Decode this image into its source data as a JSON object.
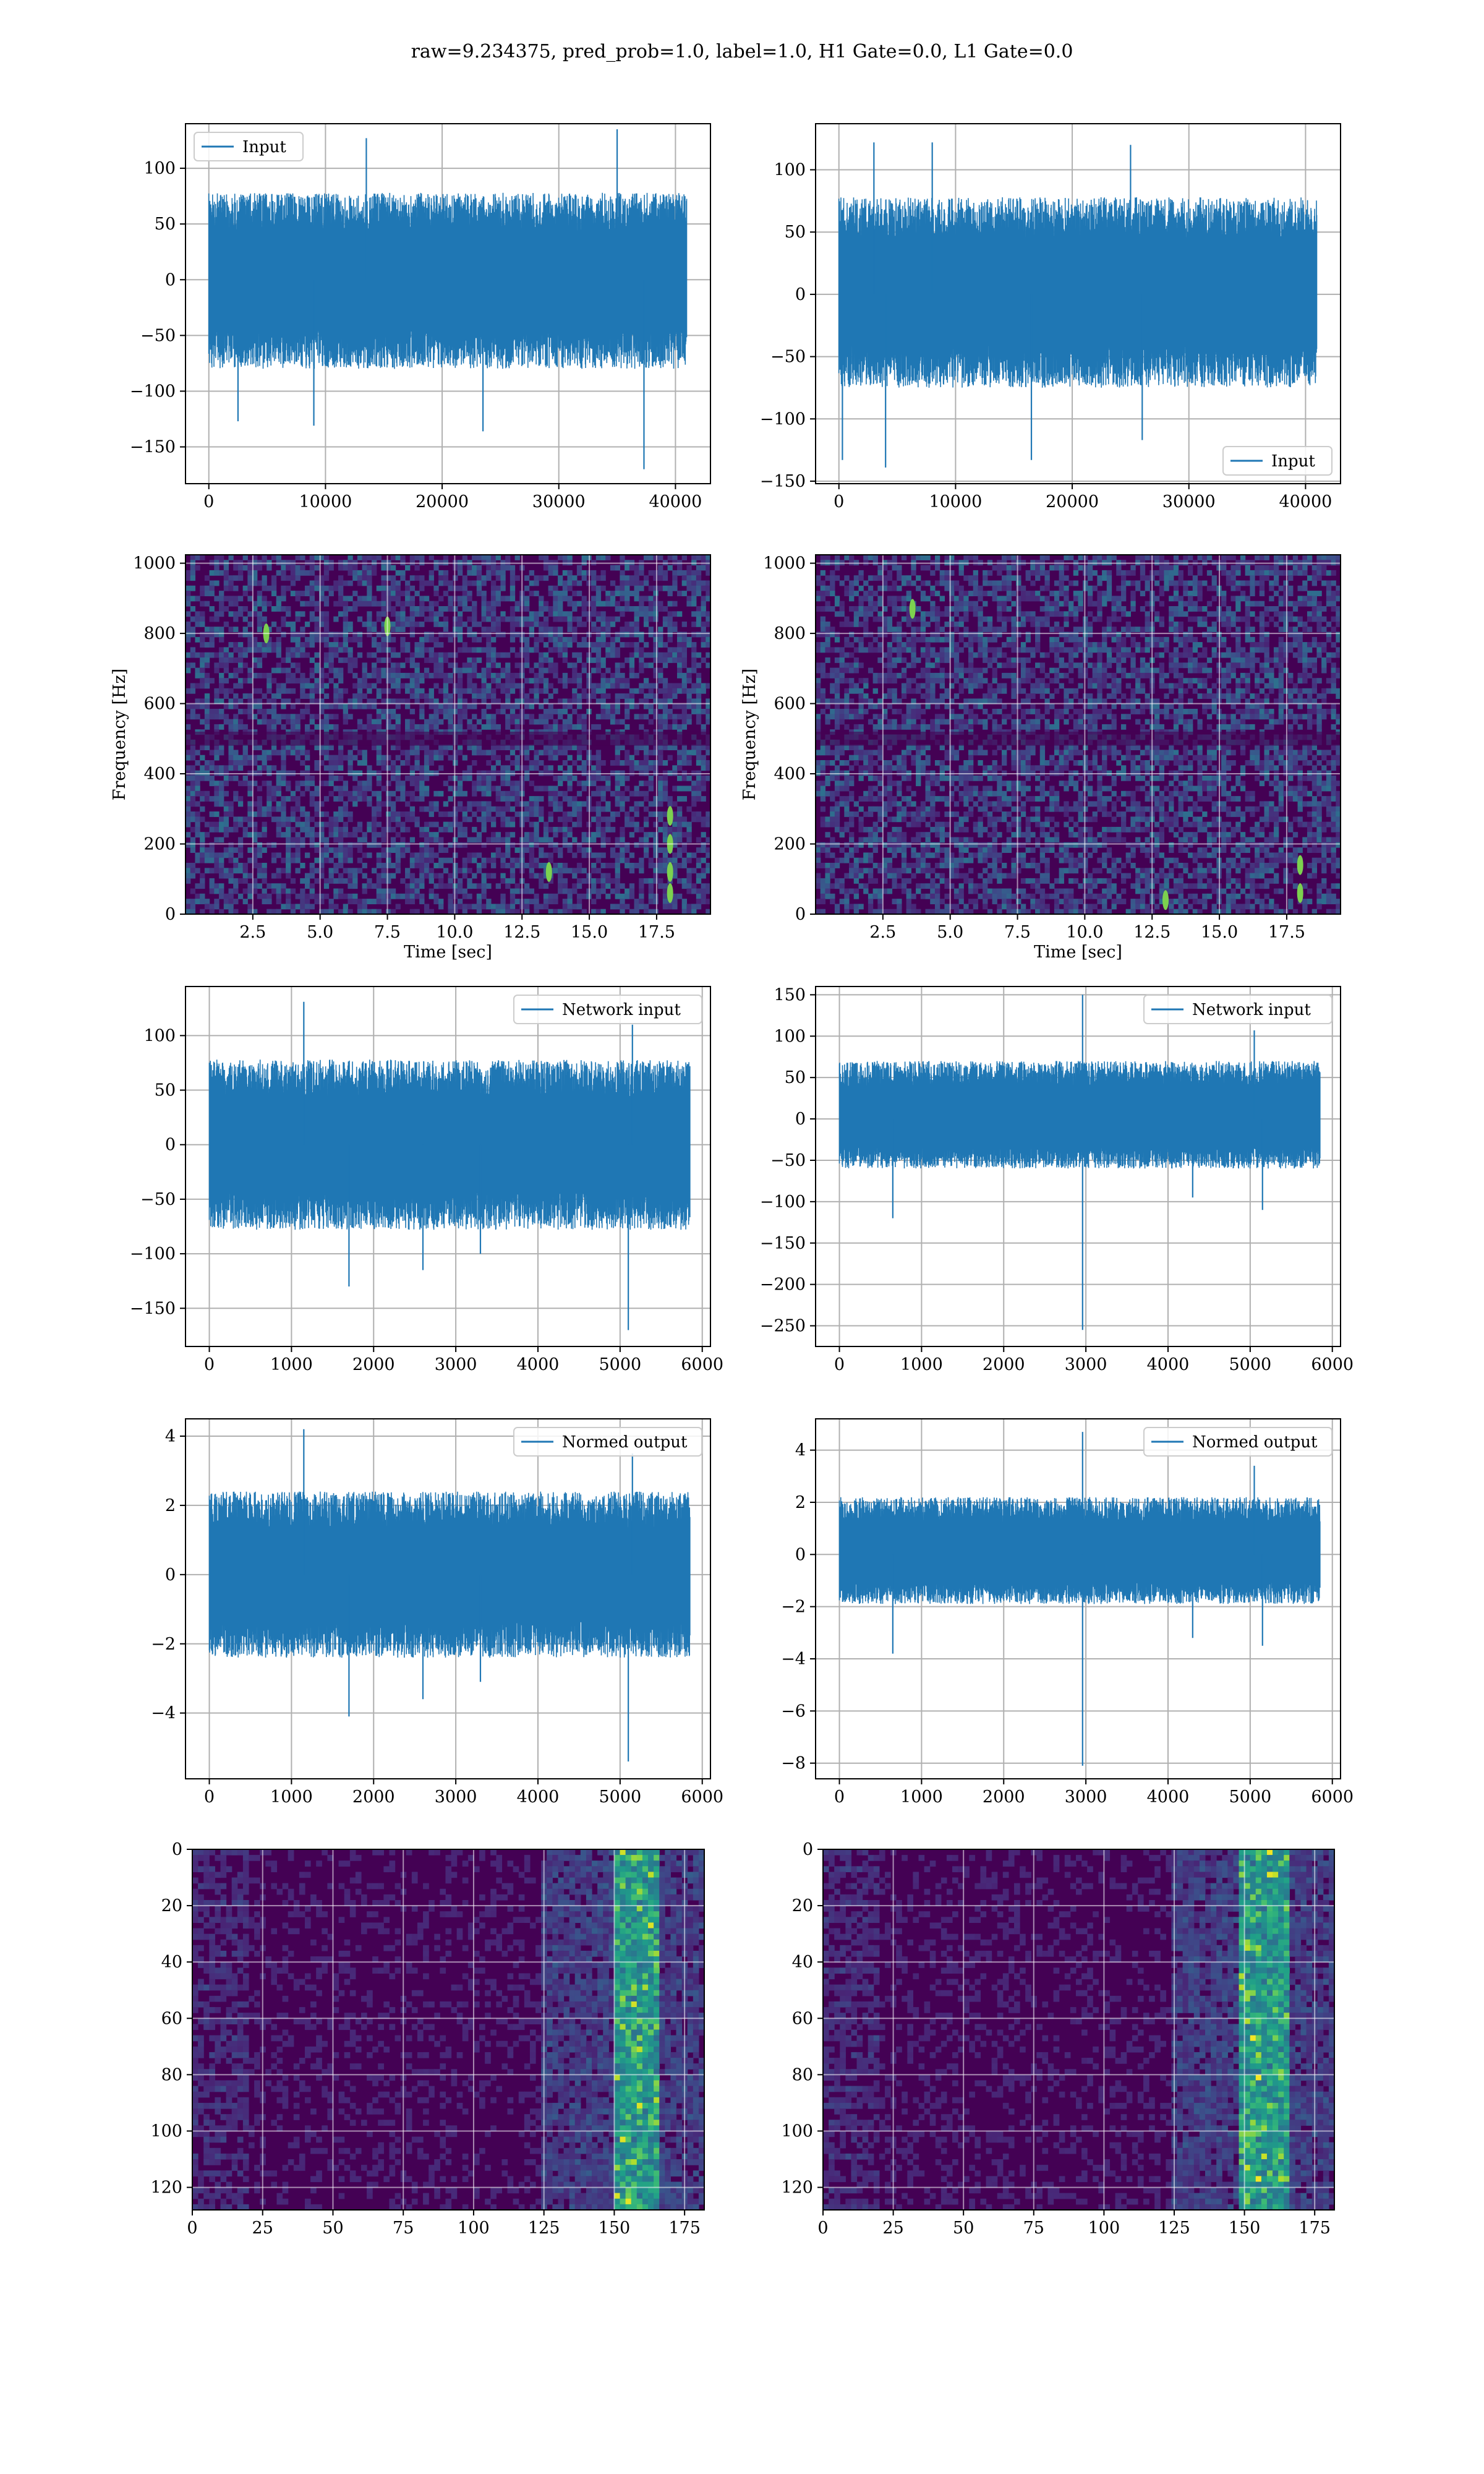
{
  "suptitle": "raw=9.234375, pred_prob=1.0, label=1.0, H1 Gate=0.0, L1 Gate=0.0",
  "colors": {
    "line": "#1f77b4",
    "grid": "#b0b0b0",
    "viridis_dark": "#440154",
    "viridis_mid": "#21918c",
    "viridis_bright": "#fde725"
  },
  "chart_data": [
    {
      "id": "input-h1",
      "type": "line",
      "row": 0,
      "col": 0,
      "legend": "Input",
      "legend_loc": "upper-left",
      "xlim": [
        -2000,
        43000
      ],
      "ylim": [
        -183,
        140
      ],
      "xticks": [
        0,
        10000,
        20000,
        30000,
        40000
      ],
      "xticklabels": [
        "0",
        "10000",
        "20000",
        "30000",
        "40000"
      ],
      "yticks": [
        -150,
        -100,
        -50,
        0,
        50,
        100
      ],
      "yticklabels": [
        "−150",
        "−100",
        "−50",
        "0",
        "50",
        "100"
      ],
      "x_max": 40960,
      "envelope": [
        -80,
        78
      ],
      "spikes": [
        [
          2500,
          -127
        ],
        [
          9000,
          -131
        ],
        [
          13500,
          127
        ],
        [
          23500,
          -136
        ],
        [
          35000,
          135
        ],
        [
          37300,
          -170
        ]
      ],
      "grid": true,
      "xlabel": "",
      "ylabel": ""
    },
    {
      "id": "input-l1",
      "type": "line",
      "row": 0,
      "col": 1,
      "legend": "Input",
      "legend_loc": "lower-right",
      "xlim": [
        -2000,
        43000
      ],
      "ylim": [
        -152,
        137
      ],
      "xticks": [
        0,
        10000,
        20000,
        30000,
        40000
      ],
      "xticklabels": [
        "0",
        "10000",
        "20000",
        "30000",
        "40000"
      ],
      "yticks": [
        -150,
        -100,
        -50,
        0,
        50,
        100
      ],
      "yticklabels": [
        "−150",
        "−100",
        "−50",
        "0",
        "50",
        "100"
      ],
      "x_max": 40960,
      "envelope": [
        -75,
        78
      ],
      "spikes": [
        [
          300,
          -133
        ],
        [
          3000,
          122
        ],
        [
          4000,
          -139
        ],
        [
          8000,
          122
        ],
        [
          16500,
          -133
        ],
        [
          25000,
          120
        ],
        [
          26000,
          -117
        ]
      ],
      "grid": true,
      "xlabel": "",
      "ylabel": ""
    },
    {
      "id": "spectrogram-h1",
      "type": "heatmap",
      "row": 1,
      "col": 0,
      "xlim": [
        0,
        19.5
      ],
      "ylim": [
        0,
        1024
      ],
      "xticks": [
        2.5,
        5.0,
        7.5,
        10.0,
        12.5,
        15.0,
        17.5
      ],
      "xticklabels": [
        "2.5",
        "5.0",
        "7.5",
        "10.0",
        "12.5",
        "15.0",
        "17.5"
      ],
      "yticks": [
        0,
        200,
        400,
        600,
        800,
        1000
      ],
      "yticklabels": [
        "0",
        "200",
        "400",
        "600",
        "800",
        "1000"
      ],
      "xlabel": "Time [sec]",
      "ylabel": "Frequency [Hz]",
      "bright_spots": [
        [
          18.0,
          60
        ],
        [
          18.0,
          120
        ],
        [
          18.0,
          200
        ],
        [
          18.0,
          280
        ],
        [
          13.5,
          120
        ],
        [
          3.0,
          800
        ],
        [
          7.5,
          820
        ]
      ],
      "grid": true
    },
    {
      "id": "spectrogram-l1",
      "type": "heatmap",
      "row": 1,
      "col": 1,
      "xlim": [
        0,
        19.5
      ],
      "ylim": [
        0,
        1024
      ],
      "xticks": [
        2.5,
        5.0,
        7.5,
        10.0,
        12.5,
        15.0,
        17.5
      ],
      "xticklabels": [
        "2.5",
        "5.0",
        "7.5",
        "10.0",
        "12.5",
        "15.0",
        "17.5"
      ],
      "yticks": [
        0,
        200,
        400,
        600,
        800,
        1000
      ],
      "yticklabels": [
        "0",
        "200",
        "400",
        "600",
        "800",
        "1000"
      ],
      "xlabel": "Time [sec]",
      "ylabel": "Frequency [Hz]",
      "bright_spots": [
        [
          3.6,
          870
        ],
        [
          13.0,
          40
        ],
        [
          18.0,
          60
        ],
        [
          18.0,
          140
        ]
      ],
      "grid": true
    },
    {
      "id": "network-input-h1",
      "type": "line",
      "row": 2,
      "col": 0,
      "legend": "Network input",
      "legend_loc": "upper-right",
      "xlim": [
        -290,
        6100
      ],
      "ylim": [
        -185,
        145
      ],
      "xticks": [
        0,
        1000,
        2000,
        3000,
        4000,
        5000,
        6000
      ],
      "xticklabels": [
        "0",
        "1000",
        "2000",
        "3000",
        "4000",
        "5000",
        "6000"
      ],
      "yticks": [
        -150,
        -100,
        -50,
        0,
        50,
        100
      ],
      "yticklabels": [
        "−150",
        "−100",
        "−50",
        "0",
        "50",
        "100"
      ],
      "x_max": 5850,
      "envelope": [
        -78,
        78
      ],
      "spikes": [
        [
          1150,
          131
        ],
        [
          1700,
          -130
        ],
        [
          2600,
          -115
        ],
        [
          5100,
          -170
        ],
        [
          5150,
          110
        ],
        [
          3300,
          -100
        ]
      ],
      "grid": true,
      "xlabel": "",
      "ylabel": ""
    },
    {
      "id": "network-input-l1",
      "type": "line",
      "row": 2,
      "col": 1,
      "legend": "Network input",
      "legend_loc": "upper-right",
      "xlim": [
        -290,
        6100
      ],
      "ylim": [
        -275,
        160
      ],
      "xticks": [
        0,
        1000,
        2000,
        3000,
        4000,
        5000,
        6000
      ],
      "xticklabels": [
        "0",
        "1000",
        "2000",
        "3000",
        "4000",
        "5000",
        "6000"
      ],
      "yticks": [
        -250,
        -200,
        -150,
        -100,
        -50,
        0,
        50,
        100,
        150
      ],
      "yticklabels": [
        "−250",
        "−200",
        "−150",
        "−100",
        "−50",
        "0",
        "50",
        "100",
        "150"
      ],
      "x_max": 5850,
      "envelope": [
        -60,
        70
      ],
      "spikes": [
        [
          2960,
          150
        ],
        [
          2960,
          -255
        ],
        [
          650,
          -120
        ],
        [
          5050,
          107
        ],
        [
          5150,
          -110
        ],
        [
          4300,
          -95
        ]
      ],
      "grid": true,
      "xlabel": "",
      "ylabel": ""
    },
    {
      "id": "normed-output-h1",
      "type": "line",
      "row": 3,
      "col": 0,
      "legend": "Normed output",
      "legend_loc": "upper-right",
      "xlim": [
        -290,
        6100
      ],
      "ylim": [
        -5.9,
        4.5
      ],
      "xticks": [
        0,
        1000,
        2000,
        3000,
        4000,
        5000,
        6000
      ],
      "xticklabels": [
        "0",
        "1000",
        "2000",
        "3000",
        "4000",
        "5000",
        "6000"
      ],
      "yticks": [
        -4,
        -2,
        0,
        2,
        4
      ],
      "yticklabels": [
        "−4",
        "−2",
        "0",
        "2",
        "4"
      ],
      "x_max": 5850,
      "envelope": [
        -2.4,
        2.4
      ],
      "spikes": [
        [
          1150,
          4.2
        ],
        [
          1700,
          -4.1
        ],
        [
          2600,
          -3.6
        ],
        [
          5100,
          -5.4
        ],
        [
          5150,
          3.5
        ],
        [
          3300,
          -3.1
        ]
      ],
      "grid": true,
      "xlabel": "",
      "ylabel": ""
    },
    {
      "id": "normed-output-l1",
      "type": "line",
      "row": 3,
      "col": 1,
      "legend": "Normed output",
      "legend_loc": "upper-right",
      "xlim": [
        -290,
        6100
      ],
      "ylim": [
        -8.6,
        5.2
      ],
      "xticks": [
        0,
        1000,
        2000,
        3000,
        4000,
        5000,
        6000
      ],
      "xticklabels": [
        "0",
        "1000",
        "2000",
        "3000",
        "4000",
        "5000",
        "6000"
      ],
      "yticks": [
        -8,
        -6,
        -4,
        -2,
        0,
        2,
        4
      ],
      "yticklabels": [
        "−8",
        "−6",
        "−4",
        "−2",
        "0",
        "2",
        "4"
      ],
      "x_max": 5850,
      "envelope": [
        -1.9,
        2.2
      ],
      "spikes": [
        [
          2960,
          4.7
        ],
        [
          2960,
          -8.1
        ],
        [
          650,
          -3.8
        ],
        [
          5050,
          3.4
        ],
        [
          5150,
          -3.5
        ],
        [
          4300,
          -3.2
        ]
      ],
      "grid": true,
      "xlabel": "",
      "ylabel": ""
    },
    {
      "id": "feature-map-h1",
      "type": "heatmap",
      "row": 4,
      "col": 0,
      "xlim": [
        0,
        182
      ],
      "ylim": [
        128,
        0
      ],
      "xticks": [
        0,
        25,
        50,
        75,
        100,
        125,
        150,
        175
      ],
      "xticklabels": [
        "0",
        "25",
        "50",
        "75",
        "100",
        "125",
        "150",
        "175"
      ],
      "yticks": [
        0,
        20,
        40,
        60,
        80,
        100,
        120
      ],
      "yticklabels": [
        "0",
        "20",
        "40",
        "60",
        "80",
        "100",
        "120"
      ],
      "bright_band_x": [
        150,
        165
      ],
      "active_from_x": 125,
      "grid": true,
      "xlabel": "",
      "ylabel": ""
    },
    {
      "id": "feature-map-l1",
      "type": "heatmap",
      "row": 4,
      "col": 1,
      "xlim": [
        0,
        182
      ],
      "ylim": [
        128,
        0
      ],
      "xticks": [
        0,
        25,
        50,
        75,
        100,
        125,
        150,
        175
      ],
      "xticklabels": [
        "0",
        "25",
        "50",
        "75",
        "100",
        "125",
        "150",
        "175"
      ],
      "yticks": [
        0,
        20,
        40,
        60,
        80,
        100,
        120
      ],
      "yticklabels": [
        "0",
        "20",
        "40",
        "60",
        "80",
        "100",
        "120"
      ],
      "bright_band_x": [
        148,
        165
      ],
      "active_from_x": 125,
      "grid": true,
      "xlabel": "",
      "ylabel": ""
    }
  ]
}
